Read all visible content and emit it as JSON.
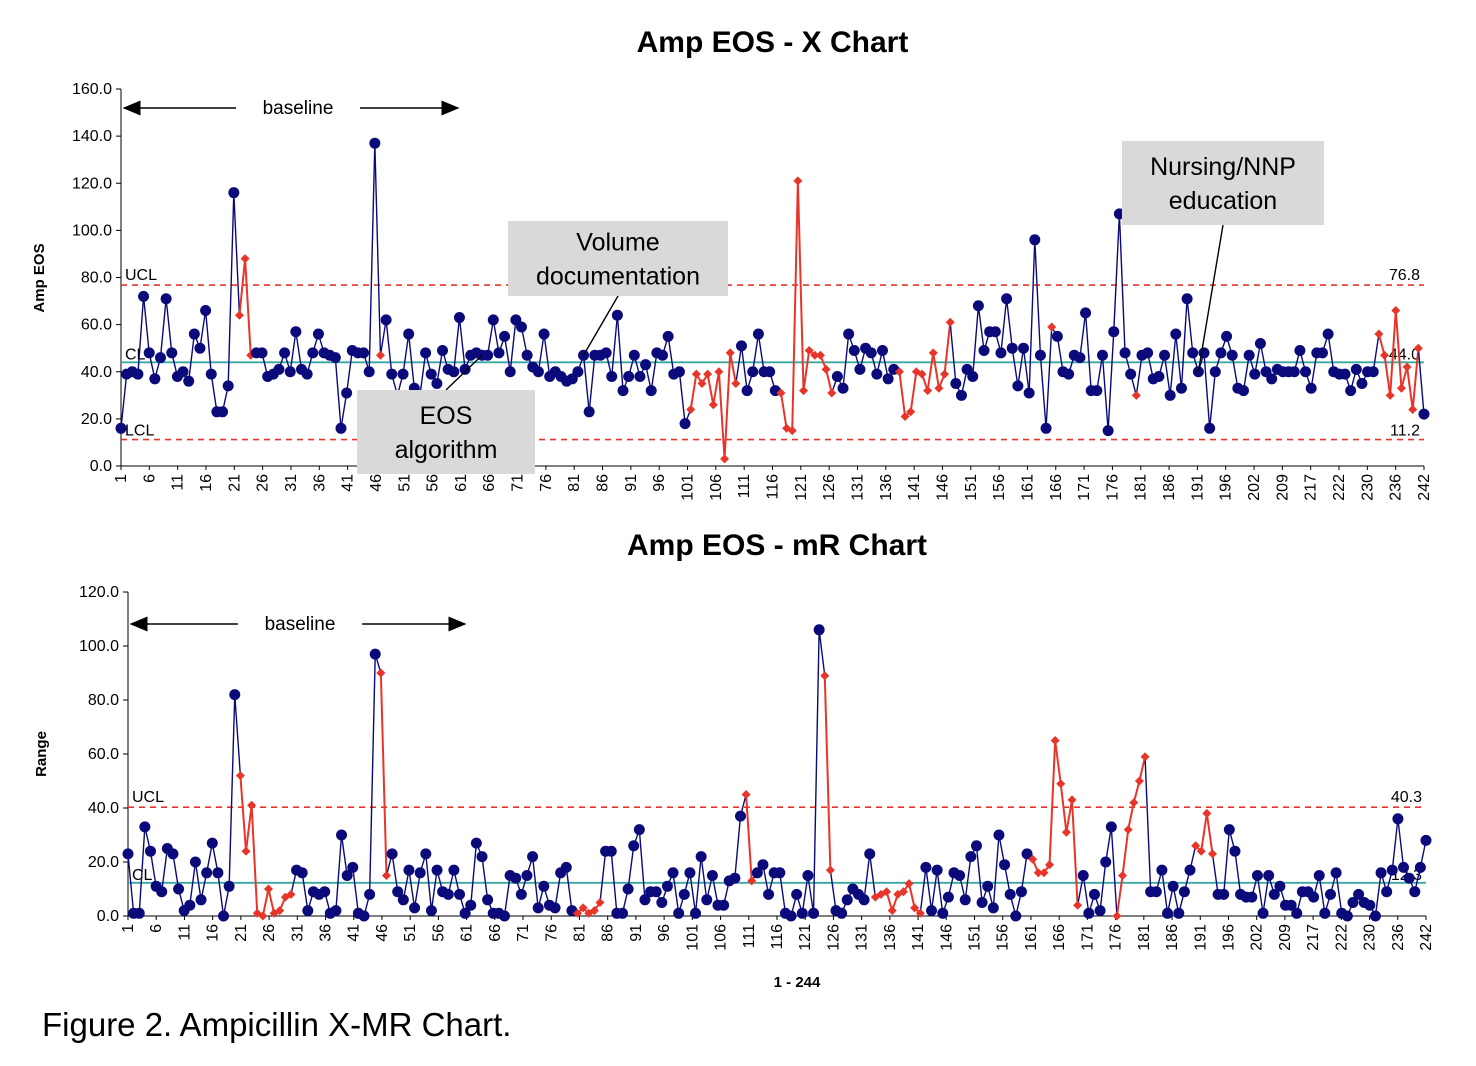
{
  "caption": "Figure 2. Ampicillin X-MR Chart.",
  "colors": {
    "normal": "#0a0a7a",
    "signal": "#e8352a",
    "center": "#3aa8a0",
    "limit": "#e8352a"
  },
  "chart_data": [
    {
      "type": "line",
      "title": "Amp EOS - X Chart",
      "ylabel": "Amp EOS",
      "xlabel": "",
      "ylim": [
        0,
        160
      ],
      "yticks": [
        "0.0",
        "20.0",
        "40.0",
        "60.0",
        "80.0",
        "100.0",
        "120.0",
        "140.0",
        "160.0"
      ],
      "xticks": [
        "1",
        "6",
        "11",
        "16",
        "21",
        "26",
        "31",
        "36",
        "41",
        "46",
        "51",
        "56",
        "61",
        "66",
        "71",
        "76",
        "81",
        "86",
        "91",
        "96",
        "101",
        "106",
        "111",
        "116",
        "121",
        "126",
        "131",
        "136",
        "141",
        "146",
        "151",
        "156",
        "161",
        "166",
        "171",
        "176",
        "181",
        "186",
        "191",
        "196",
        "202",
        "209",
        "217",
        "222",
        "230",
        "236",
        "242"
      ],
      "limits": {
        "ucl": 76.8,
        "cl": 44.0,
        "lcl": 11.2,
        "ucl_label": "UCL",
        "cl_label": "CL",
        "lcl_label": "LCL",
        "ucl_value_label": "76.8",
        "cl_value_label": "44.0",
        "lcl_value_label": "11.2"
      },
      "baseline_label": "baseline",
      "annotations": [
        {
          "text": [
            "Volume",
            "documentation"
          ],
          "point_index": 82
        },
        {
          "text": [
            "EOS",
            "algorithm"
          ],
          "point_index": 64
        },
        {
          "text": [
            "Nursing/NNP",
            "education"
          ],
          "point_index": 191
        }
      ],
      "values": [
        16,
        39,
        40,
        39,
        72,
        48,
        37,
        46,
        71,
        48,
        38,
        40,
        36,
        56,
        50,
        66,
        39,
        23,
        23,
        34,
        116,
        64,
        88,
        47,
        48,
        48,
        38,
        39,
        41,
        48,
        40,
        57,
        41,
        39,
        48,
        56,
        48,
        47,
        46,
        16,
        31,
        49,
        48,
        48,
        40,
        137,
        47,
        62,
        39,
        30,
        39,
        56,
        33,
        30,
        48,
        39,
        35,
        49,
        41,
        40,
        63,
        41,
        47,
        48,
        47,
        47,
        62,
        48,
        55,
        40,
        62,
        59,
        47,
        42,
        40,
        56,
        38,
        40,
        38,
        36,
        37,
        40,
        47,
        23,
        47,
        47,
        48,
        38,
        64,
        32,
        38,
        47,
        38,
        43,
        32,
        48,
        47,
        55,
        39,
        40,
        18,
        24,
        39,
        35,
        39,
        26,
        40,
        3,
        48,
        35,
        51,
        32,
        40,
        56,
        40,
        40,
        32,
        31,
        16,
        15,
        121,
        32,
        49,
        47,
        47,
        41,
        31,
        38,
        33,
        56,
        49,
        41,
        50,
        48,
        39,
        49,
        37,
        41,
        40,
        21,
        23,
        40,
        39,
        32,
        48,
        33,
        39,
        61,
        35,
        30,
        41,
        38,
        68,
        49,
        57,
        57,
        48,
        71,
        50,
        34,
        50,
        31,
        96,
        47,
        16,
        59,
        55,
        40,
        39,
        47,
        46,
        65,
        32,
        32,
        47,
        15,
        57,
        107,
        48,
        39,
        30,
        47,
        48,
        37,
        38,
        47,
        30,
        56,
        33,
        71,
        48,
        40,
        48,
        16,
        40,
        48,
        55,
        47,
        33,
        32,
        47,
        39,
        52,
        40,
        37,
        41,
        40,
        40,
        40,
        49,
        40,
        33,
        48,
        48,
        56,
        40,
        39,
        39,
        32,
        41,
        35,
        40,
        40,
        56,
        47,
        30,
        66,
        33,
        42,
        24,
        50,
        22
      ],
      "signal": [
        21,
        22,
        23,
        46,
        101,
        102,
        103,
        104,
        105,
        106,
        107,
        108,
        109,
        117,
        118,
        119,
        120,
        121,
        122,
        123,
        124,
        125,
        126,
        138,
        139,
        140,
        141,
        142,
        143,
        144,
        145,
        146,
        147,
        165,
        180,
        223,
        224,
        225,
        226,
        227,
        228,
        229,
        230
      ]
    },
    {
      "type": "line",
      "title": "Amp EOS - mR Chart",
      "ylabel": "Range",
      "xlabel": "1 - 244",
      "ylim": [
        0,
        120
      ],
      "yticks": [
        "0.0",
        "20.0",
        "40.0",
        "60.0",
        "80.0",
        "100.0",
        "120.0"
      ],
      "xticks": [
        "1",
        "6",
        "11",
        "16",
        "21",
        "26",
        "31",
        "36",
        "41",
        "46",
        "51",
        "56",
        "61",
        "66",
        "71",
        "76",
        "81",
        "86",
        "91",
        "96",
        "101",
        "106",
        "111",
        "116",
        "121",
        "126",
        "131",
        "136",
        "141",
        "146",
        "151",
        "156",
        "161",
        "166",
        "171",
        "176",
        "181",
        "186",
        "191",
        "196",
        "202",
        "209",
        "217",
        "222",
        "230",
        "236",
        "242"
      ],
      "limits": {
        "ucl": 40.3,
        "cl": 12.3,
        "ucl_label": "UCL",
        "cl_label": "CL",
        "ucl_value_label": "40.3",
        "cl_value_label": "12.3"
      },
      "baseline_label": "baseline",
      "values": [
        23,
        1,
        1,
        33,
        24,
        11,
        9,
        25,
        23,
        10,
        2,
        4,
        20,
        6,
        16,
        27,
        16,
        0,
        11,
        82,
        52,
        24,
        41,
        1,
        0,
        10,
        1,
        2,
        7,
        8,
        17,
        16,
        2,
        9,
        8,
        9,
        1,
        2,
        30,
        15,
        18,
        1,
        0,
        8,
        97,
        90,
        15,
        23,
        9,
        6,
        17,
        3,
        16,
        23,
        2,
        17,
        9,
        8,
        17,
        8,
        1,
        4,
        27,
        22,
        6,
        1,
        1,
        0,
        15,
        14,
        8,
        15,
        22,
        3,
        11,
        4,
        3,
        16,
        18,
        2,
        1,
        3,
        1,
        2,
        5,
        24,
        24,
        1,
        1,
        10,
        26,
        32,
        6,
        9,
        9,
        5,
        11,
        16,
        1,
        8,
        16,
        1,
        22,
        6,
        15,
        4,
        4,
        13,
        14,
        37,
        45,
        13,
        16,
        19,
        8,
        16,
        16,
        1,
        0,
        8,
        1,
        15,
        1,
        106,
        89,
        17,
        2,
        1,
        6,
        10,
        8,
        6,
        23,
        7,
        8,
        9,
        2,
        8,
        9,
        12,
        3,
        1,
        18,
        2,
        17,
        1,
        7,
        16,
        15,
        6,
        22,
        26,
        5,
        11,
        3,
        30,
        19,
        8,
        0,
        9,
        23,
        21,
        16,
        16,
        19,
        65,
        49,
        31,
        43,
        4,
        15,
        1,
        8,
        2,
        20,
        33,
        0,
        15,
        32,
        42,
        50,
        59,
        9,
        9,
        17,
        1,
        11,
        1,
        9,
        17,
        26,
        24,
        38,
        23,
        8,
        8,
        32,
        24,
        8,
        7,
        7,
        15,
        1,
        15,
        8,
        11,
        4,
        4,
        1,
        9,
        9,
        7,
        15,
        1,
        8,
        16,
        1,
        0,
        5,
        8,
        5,
        4,
        0,
        16,
        9,
        17,
        36,
        18,
        14,
        9,
        18,
        28
      ],
      "signal": [
        20,
        21,
        22,
        23,
        24,
        25,
        26,
        27,
        28,
        29,
        45,
        46,
        110,
        111,
        124,
        125,
        80,
        81,
        82,
        83,
        84,
        133,
        134,
        135,
        136,
        137,
        138,
        139,
        140,
        141,
        161,
        162,
        163,
        164,
        165,
        166,
        167,
        168,
        169,
        176,
        177,
        178,
        179,
        180,
        181,
        190,
        191,
        192,
        193
      ]
    }
  ]
}
